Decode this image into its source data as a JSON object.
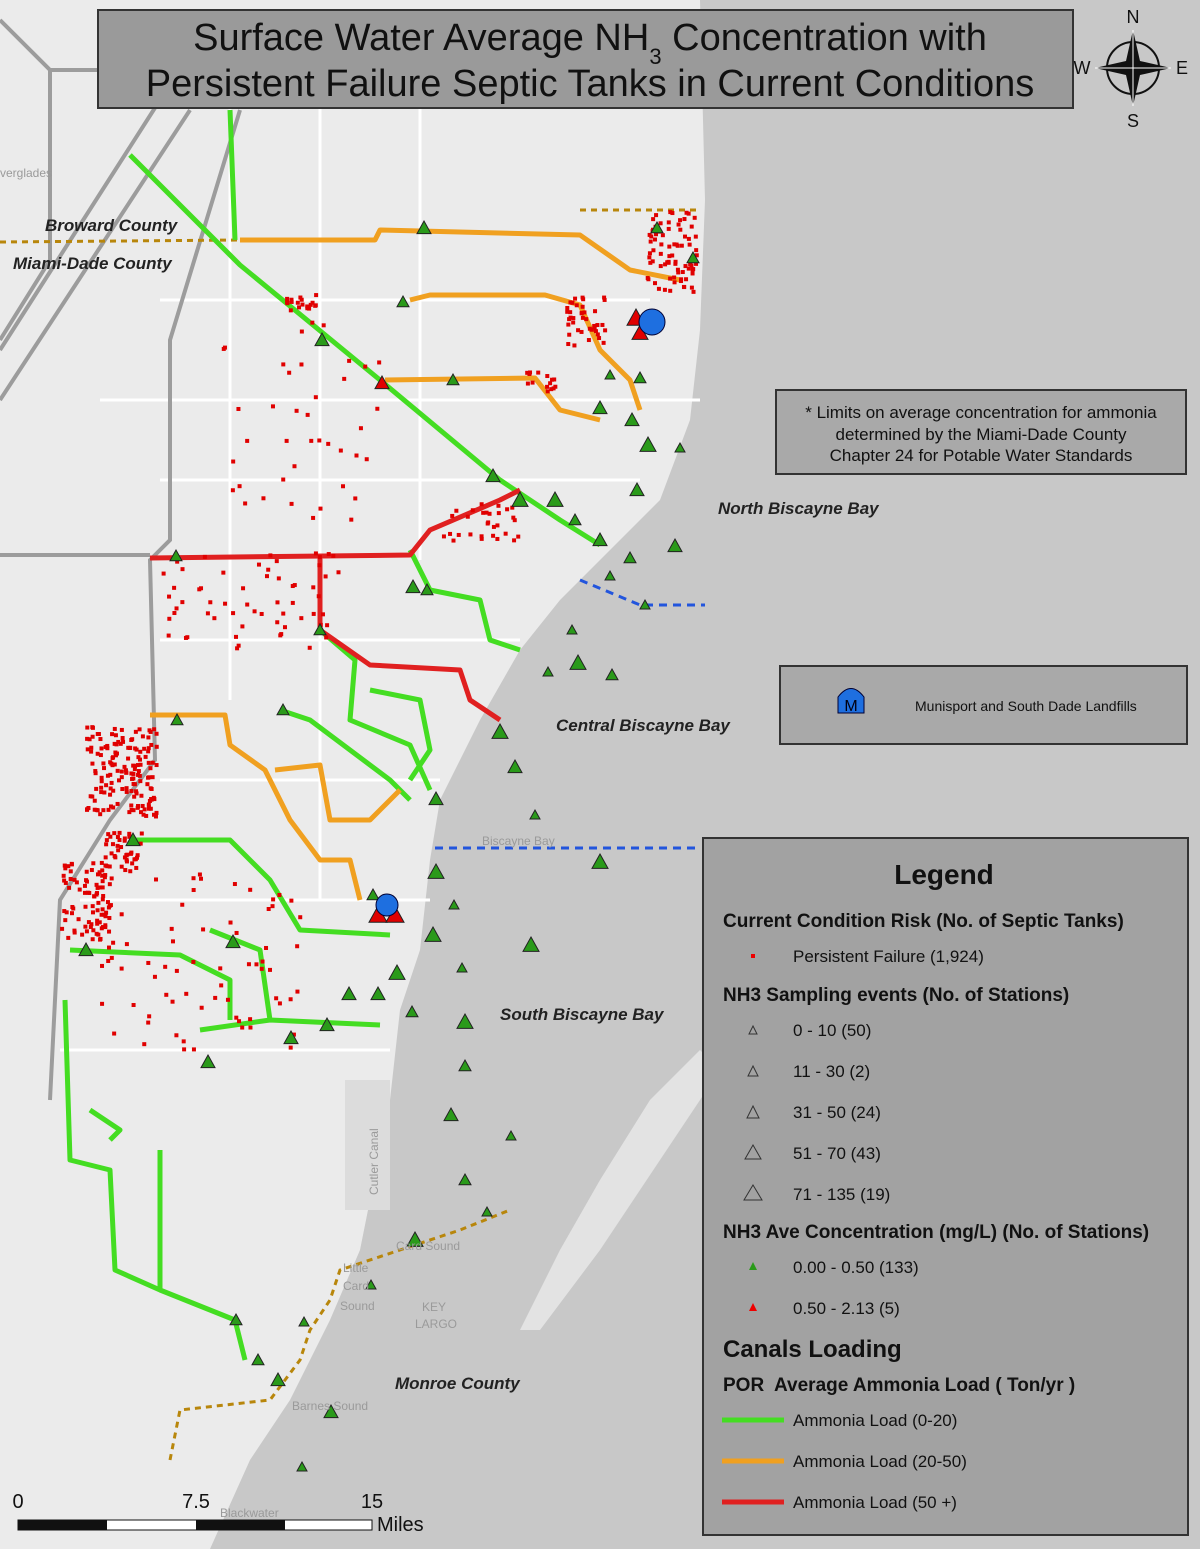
{
  "title": {
    "line1_main": "Surface Water Average NH",
    "line1_sub": "3",
    "line1_rest": " Concentration with",
    "line2": "Persistent Failure Septic Tanks in Current Conditions"
  },
  "compass": {
    "n": "N",
    "s": "S",
    "e": "E",
    "w": "W"
  },
  "map_labels": {
    "everglades": "verglades",
    "broward": "Broward County",
    "miami_dade": "Miami-Dade County",
    "north_bay": "North Biscayne Bay",
    "central_bay": "Central Biscayne Bay",
    "south_bay": "South Biscayne Bay",
    "monroe": "Monroe County",
    "biscayne_bay": "Biscayne Bay",
    "card_sound": "Card Sound",
    "little_card_sound": [
      "Little",
      "Card",
      "Sound"
    ],
    "key_largo": [
      "KEY",
      "LARGO"
    ],
    "barnes_sound": "Barnes Sound",
    "blackwater_sound": "Blackwater",
    "canal": "Cutler Canal"
  },
  "note": [
    "* Limits on average concentration for ammonia",
    "determined by the Miami-Dade County",
    "Chapter 24 for Potable Water Standards"
  ],
  "landfill_box": {
    "icon": "M",
    "label": "Munisport and South Dade Landfills"
  },
  "legend": {
    "title": "Legend",
    "risk": {
      "heading": "Current Condition Risk (No. of Septic Tanks)",
      "items": [
        "Persistent Failure (1,924)"
      ]
    },
    "sampling": {
      "heading": "NH3 Sampling events (No. of Stations)",
      "items": [
        "0 - 10 (50)",
        "11 - 30 (2)",
        "31 - 50 (24)",
        "51 - 70 (43)",
        "71 - 135 (19)"
      ]
    },
    "concentration": {
      "heading": "NH3 Ave Concentration (mg/L) (No. of Stations)",
      "items": [
        "0.00 - 0.50 (133)",
        "0.50 - 2.13 (5)"
      ]
    },
    "canals": {
      "heading": "Canals Loading",
      "subheading": "POR  Average Ammonia Load ( Ton/yr )",
      "items": [
        "Ammonia Load (0-20)",
        "Ammonia Load (20-50)",
        "Ammonia Load (50 +)"
      ]
    }
  },
  "scale_bar": {
    "ticks": [
      "0",
      "7.5",
      "15"
    ],
    "unit": "Miles"
  }
}
